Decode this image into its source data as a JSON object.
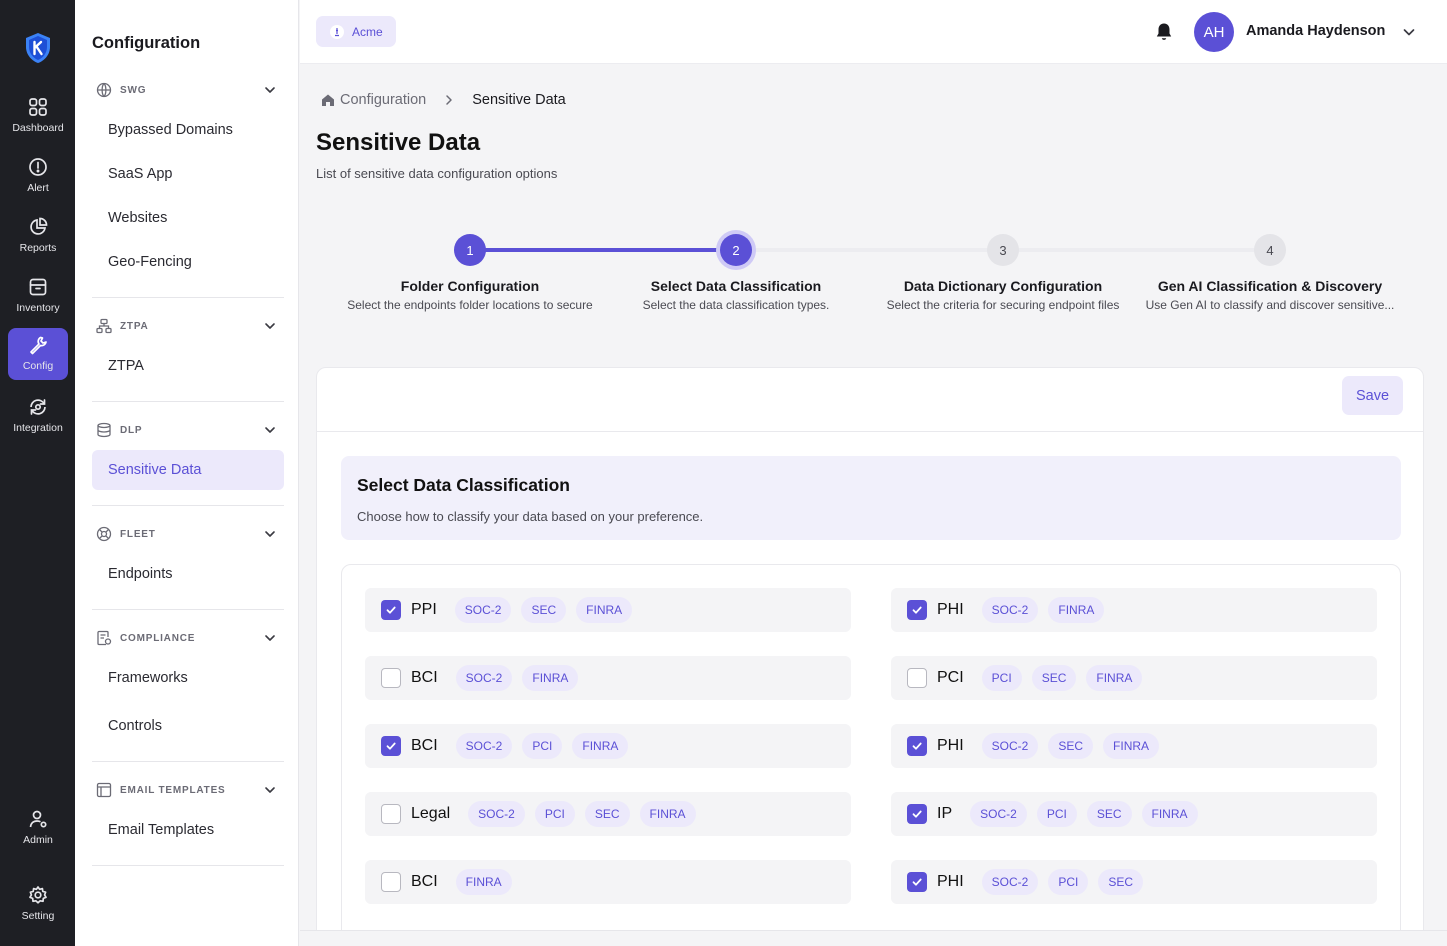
{
  "rail": {
    "items": [
      {
        "label": "Dashboard",
        "icon": "dashboard-grid-icon"
      },
      {
        "label": "Alert",
        "icon": "alert-circle-icon"
      },
      {
        "label": "Reports",
        "icon": "pie-chart-icon"
      },
      {
        "label": "Inventory",
        "icon": "archive-box-icon"
      },
      {
        "label": "Config",
        "icon": "wrench-icon",
        "active": true
      },
      {
        "label": "Integration",
        "icon": "integration-icon"
      }
    ],
    "bottom": [
      {
        "label": "Admin",
        "icon": "admin-user-icon"
      },
      {
        "label": "Setting",
        "icon": "gear-icon"
      }
    ]
  },
  "sidebar": {
    "title": "Configuration",
    "groups": [
      {
        "label": "SWG",
        "icon": "globe-icon",
        "items": [
          "Bypassed Domains",
          "SaaS App",
          "Websites",
          "Geo-Fencing"
        ]
      },
      {
        "label": "ZTPA",
        "icon": "network-icon",
        "items": [
          "ZTPA"
        ]
      },
      {
        "label": "DLP",
        "icon": "database-icon",
        "items": [
          "Sensitive Data"
        ]
      },
      {
        "label": "FLEET",
        "icon": "fleet-icon",
        "items": [
          "Endpoints"
        ]
      },
      {
        "label": "COMPLIANCE",
        "icon": "compliance-icon",
        "items": [
          "Frameworks",
          "Controls"
        ]
      },
      {
        "label": "EMAIL TEMPLATES",
        "icon": "template-icon",
        "items": [
          "Email Templates"
        ]
      }
    ]
  },
  "topbar": {
    "org": "Acme",
    "user_initials": "AH",
    "user_name": "Amanda Haydenson"
  },
  "breadcrumb": {
    "parent": "Configuration",
    "current": "Sensitive Data"
  },
  "page": {
    "title": "Sensitive Data",
    "subtitle": "List of sensitive data configuration options"
  },
  "stepper": {
    "steps": [
      {
        "num": "1",
        "title": "Folder Configuration",
        "desc": "Select the endpoints folder locations to secure",
        "state": "done"
      },
      {
        "num": "2",
        "title": "Select Data Classification",
        "desc": "Select the data classification types.",
        "state": "current"
      },
      {
        "num": "3",
        "title": "Data Dictionary Configuration",
        "desc": "Select the criteria for securing endpoint files",
        "state": "todo"
      },
      {
        "num": "4",
        "title": "Gen AI Classification & Discovery",
        "desc": "Use Gen AI to classify and discover sensitive...",
        "state": "todo"
      }
    ]
  },
  "card": {
    "save_label": "Save",
    "banner_title": "Select Data Classification",
    "banner_desc": "Choose how to classify your data based on your preference."
  },
  "classifications": {
    "left": [
      {
        "name": "PPI",
        "checked": true,
        "tags": [
          "SOC-2",
          "SEC",
          "FINRA"
        ]
      },
      {
        "name": "BCI",
        "checked": false,
        "tags": [
          "SOC-2",
          "FINRA"
        ]
      },
      {
        "name": "BCI",
        "checked": true,
        "tags": [
          "SOC-2",
          "PCI",
          "FINRA"
        ]
      },
      {
        "name": "Legal",
        "checked": false,
        "tags": [
          "SOC-2",
          "PCI",
          "SEC",
          "FINRA"
        ]
      },
      {
        "name": "BCI",
        "checked": false,
        "tags": [
          "FINRA"
        ]
      }
    ],
    "right": [
      {
        "name": "PHI",
        "checked": true,
        "tags": [
          "SOC-2",
          "FINRA"
        ]
      },
      {
        "name": "PCI",
        "checked": false,
        "tags": [
          "PCI",
          "SEC",
          "FINRA"
        ]
      },
      {
        "name": "PHI",
        "checked": true,
        "tags": [
          "SOC-2",
          "SEC",
          "FINRA"
        ]
      },
      {
        "name": "IP",
        "checked": true,
        "tags": [
          "SOC-2",
          "PCI",
          "SEC",
          "FINRA"
        ]
      },
      {
        "name": "PHI",
        "checked": true,
        "tags": [
          "SOC-2",
          "PCI",
          "SEC"
        ]
      }
    ]
  },
  "colors": {
    "accent": "#5b50d6",
    "accent_light": "#ece9fb",
    "rail_bg": "#1e1f24"
  }
}
